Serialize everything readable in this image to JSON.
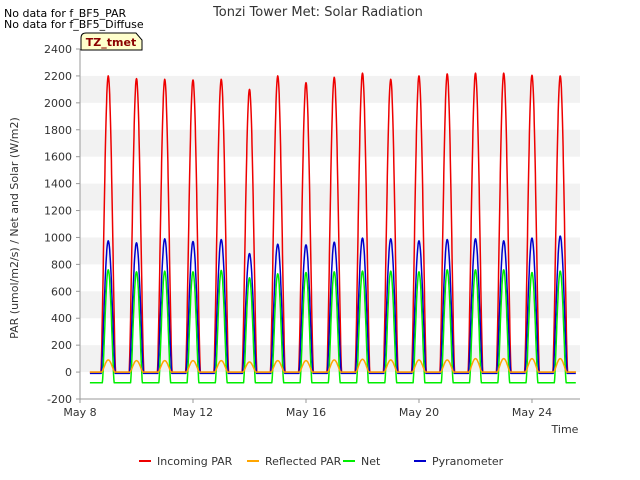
{
  "notes": [
    "No data for f_BF5_PAR",
    "No data for f_BF5_Diffuse"
  ],
  "site_badge": "TZ_tmet",
  "colors": {
    "band": "#f2f2f2",
    "axis": "#999999",
    "text": "#333333",
    "badge_bg": "#ffffcc"
  },
  "chart_data": {
    "type": "line",
    "title": "Tonzi Tower Met: Solar Radiation",
    "xlabel": "Time",
    "ylabel": "PAR (umol/m2/s) / Net and Solar (W/m2)",
    "xlim": [
      8,
      25.7
    ],
    "ylim": [
      -200,
      2400
    ],
    "x_ticks": [
      {
        "value": 8,
        "label": "May 8"
      },
      {
        "value": 12,
        "label": "May 12"
      },
      {
        "value": 16,
        "label": "May 16"
      },
      {
        "value": 20,
        "label": "May 20"
      },
      {
        "value": 24,
        "label": "May 24"
      }
    ],
    "y_ticks": [
      -200,
      0,
      200,
      400,
      600,
      800,
      1000,
      1200,
      1400,
      1600,
      1800,
      2000,
      2200,
      2400
    ],
    "legend_position": "bottom",
    "series": [
      {
        "name": "Incoming PAR",
        "color": "#ee0000",
        "night": 0,
        "width": 0.52,
        "peaks": [
          2200,
          2180,
          2175,
          2170,
          2175,
          2100,
          2200,
          2150,
          2190,
          2220,
          2175,
          2200,
          2215,
          2220,
          2220,
          2205,
          2200
        ]
      },
      {
        "name": "Reflected PAR",
        "color": "#ffa500",
        "night": 0,
        "width": 0.46,
        "peaks": [
          90,
          85,
          85,
          85,
          85,
          75,
          85,
          85,
          90,
          95,
          90,
          90,
          90,
          100,
          100,
          100,
          100
        ]
      },
      {
        "name": "Net",
        "color": "#00ee00",
        "night": -80,
        "width": 0.42,
        "peaks": [
          760,
          745,
          750,
          745,
          755,
          700,
          730,
          740,
          745,
          750,
          750,
          745,
          760,
          760,
          760,
          740,
          750
        ]
      },
      {
        "name": "Pyranometer",
        "color": "#0000cc",
        "night": -10,
        "width": 0.5,
        "peaks": [
          975,
          960,
          990,
          970,
          985,
          880,
          950,
          945,
          965,
          995,
          990,
          975,
          985,
          990,
          975,
          995,
          1010
        ]
      }
    ],
    "day_centers": [
      9,
      10,
      11,
      12,
      13,
      14,
      15,
      16,
      17,
      18,
      19,
      20,
      21,
      22,
      23,
      24,
      25
    ],
    "data_start": 8.35,
    "data_end": 25.55
  }
}
